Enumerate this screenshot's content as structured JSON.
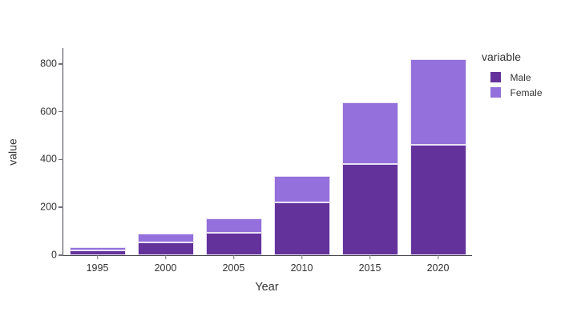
{
  "figure": {
    "background": "#ffffff",
    "text_color": "#333333",
    "axis_line_color": "#45454d",
    "tick_color": "#71717a",
    "bar_border_color": "#e9e2f6"
  },
  "chart_data": {
    "type": "bar",
    "stacked": true,
    "title": "",
    "xlabel": "Year",
    "ylabel": "value",
    "categories": [
      "1995",
      "2000",
      "2005",
      "2010",
      "2015",
      "2020"
    ],
    "series": [
      {
        "name": "Male",
        "color": "#63339b",
        "values": [
          20,
          55,
          95,
          220,
          380,
          460
        ]
      },
      {
        "name": "Female",
        "color": "#9370db",
        "values": [
          15,
          35,
          60,
          110,
          260,
          360
        ]
      }
    ],
    "totals": [
      35,
      90,
      155,
      330,
      640,
      820
    ],
    "yticks": [
      0,
      200,
      400,
      600,
      800
    ],
    "ylim": [
      0,
      866
    ],
    "grid": false,
    "legend": {
      "title": "variable",
      "position": "right-top",
      "items": [
        "Male",
        "Female"
      ]
    }
  }
}
